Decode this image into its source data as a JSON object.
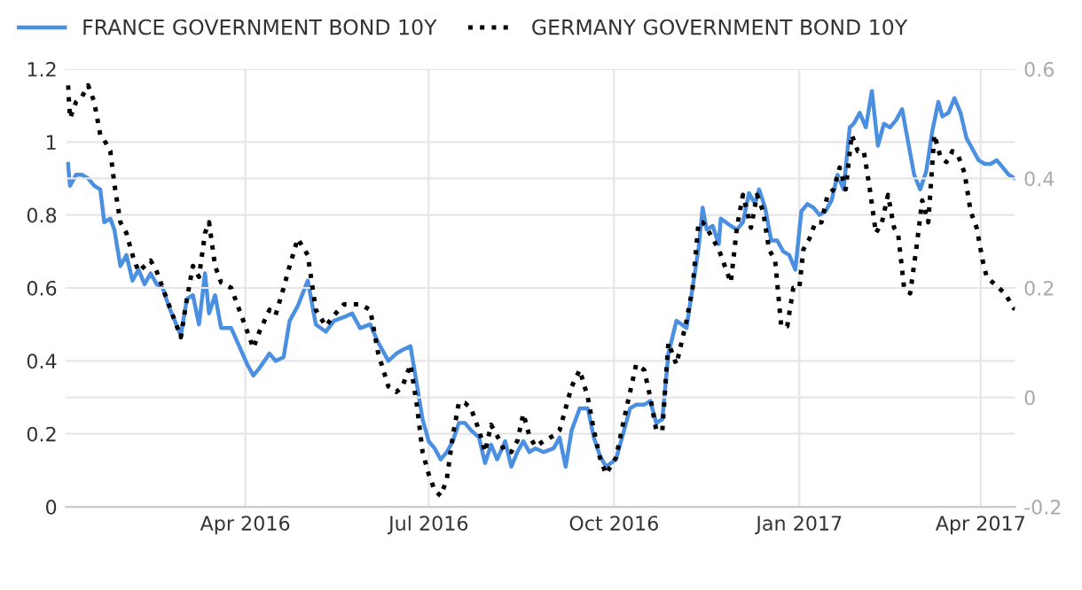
{
  "chart_data": {
    "type": "line",
    "xlim": [
      "2016-01-03",
      "2017-04-18"
    ],
    "xticks": [
      {
        "value": "2016-04-01",
        "label": "Apr 2016"
      },
      {
        "value": "2016-07-01",
        "label": "Jul 2016"
      },
      {
        "value": "2016-10-01",
        "label": "Oct 2016"
      },
      {
        "value": "2017-01-01",
        "label": "Jan 2017"
      },
      {
        "value": "2017-04-01",
        "label": "Apr 2017"
      }
    ],
    "ylim": [
      0,
      1.2
    ],
    "yticks": [
      0,
      0.2,
      0.4,
      0.6,
      0.8,
      1,
      1.2
    ],
    "y2lim": [
      -0.2,
      0.6
    ],
    "y2ticks": [
      -0.2,
      0,
      0.2,
      0.4,
      0.6
    ],
    "grid": true,
    "legend": "top left",
    "marker": "none",
    "series": [
      {
        "name": "FRANCE GOVERNMENT BOND 10Y",
        "color": "#4a8fe0",
        "line_style": "solid",
        "x": [
          "2016-01-04",
          "2016-01-05",
          "2016-01-08",
          "2016-01-11",
          "2016-01-14",
          "2016-01-17",
          "2016-01-20",
          "2016-01-22",
          "2016-01-25",
          "2016-01-27",
          "2016-01-30",
          "2016-02-02",
          "2016-02-05",
          "2016-02-08",
          "2016-02-11",
          "2016-02-14",
          "2016-02-17",
          "2016-02-20",
          "2016-02-23",
          "2016-02-26",
          "2016-02-29",
          "2016-03-03",
          "2016-03-06",
          "2016-03-09",
          "2016-03-12",
          "2016-03-14",
          "2016-03-17",
          "2016-03-20",
          "2016-03-25",
          "2016-03-29",
          "2016-04-02",
          "2016-04-05",
          "2016-04-08",
          "2016-04-13",
          "2016-04-16",
          "2016-04-20",
          "2016-04-23",
          "2016-04-27",
          "2016-05-02",
          "2016-05-06",
          "2016-05-11",
          "2016-05-15",
          "2016-05-20",
          "2016-05-24",
          "2016-05-28",
          "2016-06-02",
          "2016-06-06",
          "2016-06-11",
          "2016-06-15",
          "2016-06-18",
          "2016-06-22",
          "2016-06-25",
          "2016-06-28",
          "2016-07-01",
          "2016-07-04",
          "2016-07-07",
          "2016-07-10",
          "2016-07-13",
          "2016-07-16",
          "2016-07-19",
          "2016-07-22",
          "2016-07-26",
          "2016-07-29",
          "2016-08-01",
          "2016-08-04",
          "2016-08-08",
          "2016-08-11",
          "2016-08-14",
          "2016-08-17",
          "2016-08-20",
          "2016-08-23",
          "2016-08-27",
          "2016-09-01",
          "2016-09-04",
          "2016-09-07",
          "2016-09-10",
          "2016-09-14",
          "2016-09-18",
          "2016-09-21",
          "2016-09-24",
          "2016-09-27",
          "2016-10-02",
          "2016-10-06",
          "2016-10-09",
          "2016-10-12",
          "2016-10-16",
          "2016-10-19",
          "2016-10-22",
          "2016-10-25",
          "2016-10-28",
          "2016-11-01",
          "2016-11-06",
          "2016-11-09",
          "2016-11-12",
          "2016-11-14",
          "2016-11-16",
          "2016-11-19",
          "2016-11-22",
          "2016-11-23",
          "2016-11-28",
          "2016-12-01",
          "2016-12-04",
          "2016-12-07",
          "2016-12-10",
          "2016-12-12",
          "2016-12-15",
          "2016-12-18",
          "2016-12-21",
          "2016-12-24",
          "2016-12-27",
          "2016-12-30",
          "2017-01-02",
          "2017-01-05",
          "2017-01-08",
          "2017-01-11",
          "2017-01-14",
          "2017-01-17",
          "2017-01-20",
          "2017-01-23",
          "2017-01-26",
          "2017-01-28",
          "2017-01-31",
          "2017-02-03",
          "2017-02-06",
          "2017-02-09",
          "2017-02-12",
          "2017-02-15",
          "2017-02-18",
          "2017-02-21",
          "2017-02-24",
          "2017-02-27",
          "2017-03-02",
          "2017-03-05",
          "2017-03-08",
          "2017-03-11",
          "2017-03-13",
          "2017-03-16",
          "2017-03-19",
          "2017-03-22",
          "2017-03-25",
          "2017-03-28",
          "2017-03-31",
          "2017-04-03",
          "2017-04-06",
          "2017-04-09",
          "2017-04-12",
          "2017-04-15",
          "2017-04-18"
        ],
        "values": [
          0.94,
          0.88,
          0.91,
          0.91,
          0.9,
          0.88,
          0.87,
          0.78,
          0.79,
          0.76,
          0.66,
          0.69,
          0.62,
          0.65,
          0.61,
          0.64,
          0.61,
          0.6,
          0.55,
          0.51,
          0.47,
          0.57,
          0.58,
          0.5,
          0.64,
          0.53,
          0.58,
          0.49,
          0.49,
          0.44,
          0.39,
          0.36,
          0.38,
          0.42,
          0.4,
          0.41,
          0.51,
          0.55,
          0.62,
          0.5,
          0.48,
          0.51,
          0.52,
          0.53,
          0.49,
          0.5,
          0.45,
          0.4,
          0.42,
          0.43,
          0.44,
          0.34,
          0.24,
          0.18,
          0.16,
          0.13,
          0.15,
          0.18,
          0.23,
          0.23,
          0.21,
          0.19,
          0.12,
          0.17,
          0.13,
          0.18,
          0.11,
          0.15,
          0.18,
          0.15,
          0.16,
          0.15,
          0.16,
          0.19,
          0.11,
          0.21,
          0.27,
          0.27,
          0.19,
          0.14,
          0.11,
          0.13,
          0.21,
          0.27,
          0.28,
          0.28,
          0.29,
          0.23,
          0.24,
          0.42,
          0.51,
          0.49,
          0.6,
          0.71,
          0.82,
          0.76,
          0.77,
          0.72,
          0.79,
          0.77,
          0.76,
          0.78,
          0.86,
          0.83,
          0.87,
          0.82,
          0.73,
          0.73,
          0.7,
          0.69,
          0.65,
          0.81,
          0.83,
          0.82,
          0.8,
          0.81,
          0.84,
          0.91,
          0.87,
          1.04,
          1.05,
          1.08,
          1.04,
          1.14,
          0.99,
          1.05,
          1.04,
          1.06,
          1.09,
          1.0,
          0.91,
          0.87,
          0.92,
          1.03,
          1.11,
          1.07,
          1.08,
          1.12,
          1.08,
          1.01,
          0.98,
          0.95,
          0.94,
          0.94,
          0.95,
          0.93,
          0.91,
          0.9
        ]
      },
      {
        "name": "GERMANY GOVERNMENT BOND 10Y",
        "color": "#000000",
        "line_style": "dotted",
        "axis": "y2",
        "x": [
          "2016-01-04",
          "2016-01-05",
          "2016-01-08",
          "2016-01-11",
          "2016-01-14",
          "2016-01-17",
          "2016-01-20",
          "2016-01-22",
          "2016-01-25",
          "2016-01-27",
          "2016-01-30",
          "2016-02-02",
          "2016-02-05",
          "2016-02-08",
          "2016-02-11",
          "2016-02-14",
          "2016-02-17",
          "2016-02-20",
          "2016-02-23",
          "2016-02-26",
          "2016-02-29",
          "2016-03-03",
          "2016-03-06",
          "2016-03-09",
          "2016-03-12",
          "2016-03-14",
          "2016-03-17",
          "2016-03-20",
          "2016-03-25",
          "2016-03-29",
          "2016-04-02",
          "2016-04-05",
          "2016-04-08",
          "2016-04-13",
          "2016-04-16",
          "2016-04-20",
          "2016-04-23",
          "2016-04-27",
          "2016-05-02",
          "2016-05-06",
          "2016-05-11",
          "2016-05-15",
          "2016-05-20",
          "2016-05-24",
          "2016-05-28",
          "2016-06-02",
          "2016-06-06",
          "2016-06-11",
          "2016-06-15",
          "2016-06-18",
          "2016-06-22",
          "2016-06-25",
          "2016-06-28",
          "2016-07-01",
          "2016-07-04",
          "2016-07-07",
          "2016-07-10",
          "2016-07-13",
          "2016-07-16",
          "2016-07-19",
          "2016-07-22",
          "2016-07-26",
          "2016-07-29",
          "2016-08-01",
          "2016-08-04",
          "2016-08-08",
          "2016-08-11",
          "2016-08-14",
          "2016-08-17",
          "2016-08-20",
          "2016-08-23",
          "2016-08-27",
          "2016-09-01",
          "2016-09-04",
          "2016-09-07",
          "2016-09-10",
          "2016-09-14",
          "2016-09-18",
          "2016-09-21",
          "2016-09-24",
          "2016-09-27",
          "2016-10-02",
          "2016-10-06",
          "2016-10-09",
          "2016-10-12",
          "2016-10-16",
          "2016-10-19",
          "2016-10-22",
          "2016-10-25",
          "2016-10-28",
          "2016-11-01",
          "2016-11-06",
          "2016-11-09",
          "2016-11-12",
          "2016-11-14",
          "2016-11-16",
          "2016-11-19",
          "2016-11-22",
          "2016-11-23",
          "2016-11-28",
          "2016-12-01",
          "2016-12-04",
          "2016-12-08",
          "2016-12-11",
          "2016-12-14",
          "2016-12-17",
          "2016-12-20",
          "2016-12-23",
          "2016-12-26",
          "2016-12-29",
          "2017-01-01",
          "2017-01-03",
          "2017-01-06",
          "2017-01-09",
          "2017-01-12",
          "2017-01-15",
          "2017-01-18",
          "2017-01-21",
          "2017-01-24",
          "2017-01-27",
          "2017-01-30",
          "2017-02-02",
          "2017-02-05",
          "2017-02-08",
          "2017-02-11",
          "2017-02-14",
          "2017-02-17",
          "2017-02-19",
          "2017-02-22",
          "2017-02-25",
          "2017-02-28",
          "2017-03-03",
          "2017-03-06",
          "2017-03-09",
          "2017-03-12",
          "2017-03-15",
          "2017-03-18",
          "2017-03-21",
          "2017-03-24",
          "2017-03-27",
          "2017-03-30",
          "2017-04-02",
          "2017-04-04",
          "2017-04-07",
          "2017-04-10",
          "2017-04-13",
          "2017-04-18"
        ],
        "values": [
          0.57,
          0.51,
          0.54,
          0.55,
          0.57,
          0.54,
          0.48,
          0.47,
          0.45,
          0.39,
          0.32,
          0.3,
          0.26,
          0.23,
          0.24,
          0.25,
          0.23,
          0.2,
          0.17,
          0.14,
          0.11,
          0.18,
          0.24,
          0.22,
          0.3,
          0.32,
          0.24,
          0.21,
          0.2,
          0.16,
          0.12,
          0.09,
          0.12,
          0.16,
          0.15,
          0.2,
          0.24,
          0.29,
          0.26,
          0.16,
          0.13,
          0.15,
          0.17,
          0.17,
          0.17,
          0.16,
          0.08,
          0.02,
          0.01,
          0.02,
          0.06,
          -0.01,
          -0.1,
          -0.14,
          -0.17,
          -0.18,
          -0.15,
          -0.07,
          -0.01,
          -0.01,
          -0.02,
          -0.06,
          -0.1,
          -0.05,
          -0.07,
          -0.1,
          -0.1,
          -0.08,
          -0.03,
          -0.07,
          -0.09,
          -0.08,
          -0.07,
          -0.06,
          -0.02,
          0.02,
          0.05,
          0.0,
          -0.06,
          -0.11,
          -0.14,
          -0.11,
          -0.04,
          0.01,
          0.06,
          0.05,
          0.0,
          -0.06,
          -0.06,
          0.1,
          0.06,
          0.14,
          0.2,
          0.32,
          0.32,
          0.31,
          0.29,
          0.27,
          0.26,
          0.21,
          0.31,
          0.37,
          0.31,
          0.37,
          0.34,
          0.27,
          0.25,
          0.13,
          0.13,
          0.2,
          0.2,
          0.27,
          0.29,
          0.32,
          0.32,
          0.37,
          0.38,
          0.42,
          0.38,
          0.48,
          0.45,
          0.45,
          0.38,
          0.3,
          0.32,
          0.37,
          0.31,
          0.3,
          0.2,
          0.19,
          0.27,
          0.36,
          0.32,
          0.48,
          0.44,
          0.43,
          0.45,
          0.44,
          0.41,
          0.34,
          0.31,
          0.25,
          0.22,
          0.21,
          0.2,
          0.19,
          0.16
        ]
      }
    ]
  }
}
